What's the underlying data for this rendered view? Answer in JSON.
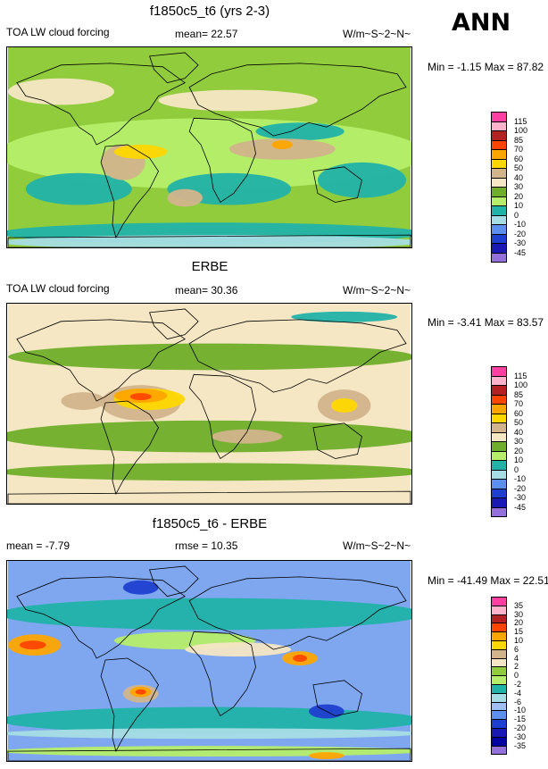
{
  "season": "ANN",
  "colors": {
    "coast": "#000000"
  },
  "panels": [
    {
      "id": "model",
      "title": "f1850c5_t6 (yrs 2-3)",
      "left_label": "TOA LW cloud forcing",
      "center_label": "mean=  22.57",
      "units": "W/m~S~2~N~",
      "minmax": "Min =  -1.15 Max =  87.82",
      "bg": "#91cc3c",
      "legend_labels": [
        "115",
        "100",
        "85",
        "70",
        "60",
        "50",
        "40",
        "30",
        "20",
        "10",
        "0",
        "-10",
        "-20",
        "-30",
        "-45"
      ],
      "legend_colors": [
        "#ff3fa2",
        "#ffb2cc",
        "#b22222",
        "#ff4500",
        "#ffa500",
        "#ffd700",
        "#d2b48c",
        "#f5e6c4",
        "#6fae2a",
        "#b6ee6a",
        "#22b2a8",
        "#a6dde4",
        "#5d8ff0",
        "#1f3fcf",
        "#1a1ab2",
        "#9370db"
      ]
    },
    {
      "id": "obs",
      "title": "ERBE",
      "left_label": "TOA LW cloud forcing",
      "center_label": "mean=  30.36",
      "units": "W/m~S~2~N~",
      "minmax": "Min =  -3.41 Max =  83.57",
      "bg": "#f5e6c4",
      "legend_labels": [
        "115",
        "100",
        "85",
        "70",
        "60",
        "50",
        "40",
        "30",
        "20",
        "10",
        "0",
        "-10",
        "-20",
        "-30",
        "-45"
      ],
      "legend_colors": [
        "#ff3fa2",
        "#ffb2cc",
        "#b22222",
        "#ff4500",
        "#ffa500",
        "#ffd700",
        "#d2b48c",
        "#f5e6c4",
        "#6fae2a",
        "#b6ee6a",
        "#22b2a8",
        "#a6dde4",
        "#5d8ff0",
        "#1f3fcf",
        "#1a1ab2",
        "#9370db"
      ]
    },
    {
      "id": "diff",
      "title": "f1850c5_t6 - ERBE",
      "left_label": "mean =  -7.79",
      "center_label": "rmse =  10.35",
      "units": "W/m~S~2~N~",
      "minmax": "Min = -41.49 Max =  22.51",
      "bg": "#7fa7f0",
      "legend_labels": [
        "35",
        "30",
        "20",
        "15",
        "10",
        "6",
        "4",
        "2",
        "0",
        "-2",
        "-4",
        "-6",
        "-10",
        "-15",
        "-20",
        "-30",
        "-35"
      ],
      "legend_colors": [
        "#ff3fa2",
        "#ffb2cc",
        "#b22222",
        "#ff4500",
        "#ffa500",
        "#ffd700",
        "#d2b48c",
        "#f5e6c4",
        "#91cc3c",
        "#b6ee6a",
        "#22b2a8",
        "#a6dde4",
        "#9fbff5",
        "#5d8ff0",
        "#1f3fcf",
        "#1a1ab2",
        "#0000a0",
        "#9370db"
      ]
    }
  ]
}
